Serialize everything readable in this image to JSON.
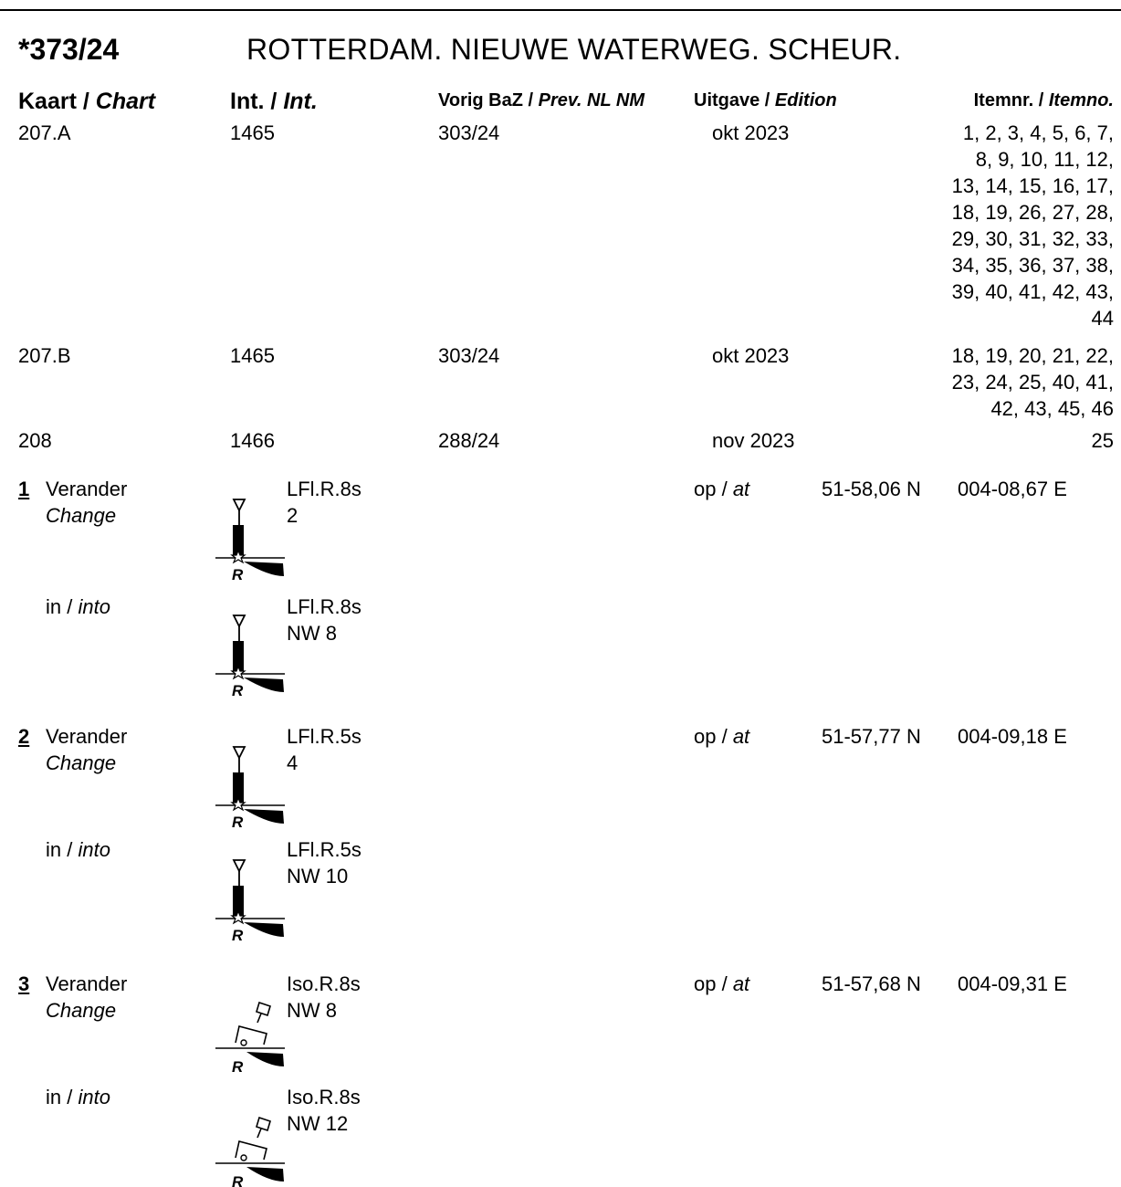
{
  "notice": {
    "number": "*373/24",
    "title": "ROTTERDAM. NIEUWE WATERWEG. SCHEUR."
  },
  "headers": {
    "chart": "Kaart / ",
    "chart_en": "Chart",
    "int": "Int. / ",
    "int_en": "Int.",
    "prev": "Vorig BaZ / ",
    "prev_en": "Prev. NL NM",
    "edition": "Uitgave / ",
    "edition_en": "Edition",
    "itemno": "Itemnr. / ",
    "itemno_en": "Itemno."
  },
  "charts": [
    {
      "chart": "207.A",
      "int": "1465",
      "prev": "303/24",
      "edition": "okt 2023",
      "items": [
        "1, 2, 3, 4, 5, 6, 7,",
        "8, 9, 10, 11, 12,",
        "13, 14, 15, 16, 17,",
        "18, 19, 26, 27, 28,",
        "29, 30, 31, 32, 33,",
        "34, 35, 36, 37, 38,",
        "39, 40, 41, 42, 43,",
        "44"
      ]
    },
    {
      "chart": "207.B",
      "int": "1465",
      "prev": "303/24",
      "edition": "okt 2023",
      "items": [
        "18, 19, 20, 21, 22,",
        "23, 24, 25, 40, 41,",
        "42, 43, 45, 46"
      ]
    },
    {
      "chart": "208",
      "int": "1466",
      "prev": "288/24",
      "edition": "nov 2023",
      "items": [
        "25"
      ]
    }
  ],
  "labels": {
    "change_nl": "Verander",
    "change_en": "Change",
    "into_nl": "in / ",
    "into_en": "into",
    "at_nl": "op / ",
    "at_en": "at",
    "r_label": "R"
  },
  "items": [
    {
      "num": "1",
      "from_light": "LFl.R.8s",
      "from_name": "2",
      "to_light": "LFl.R.8s",
      "to_name": "NW 8",
      "lat": "51-58,06 N",
      "lon": "004-08,67 E",
      "symbol": "lateral-buoy-icon"
    },
    {
      "num": "2",
      "from_light": "LFl.R.5s",
      "from_name": "4",
      "to_light": "LFl.R.5s",
      "to_name": "NW 10",
      "lat": "51-57,77 N",
      "lon": "004-09,18 E",
      "symbol": "lateral-buoy-icon"
    },
    {
      "num": "3",
      "from_light": "Iso.R.8s",
      "from_name": "NW 8",
      "to_light": "Iso.R.8s",
      "to_name": "NW 12",
      "lat": "51-57,68 N",
      "lon": "004-09,31 E",
      "symbol": "beacon-structure-icon"
    }
  ]
}
